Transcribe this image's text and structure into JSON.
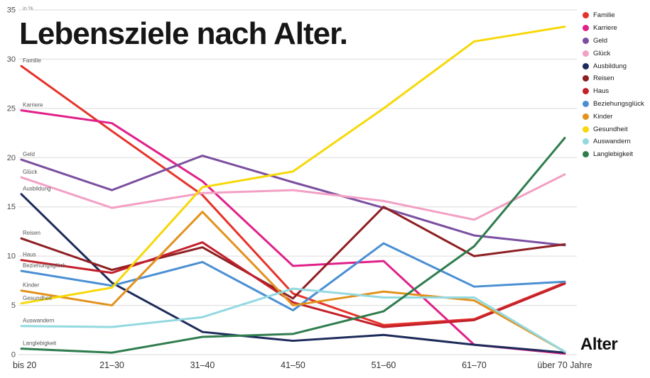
{
  "title": "Lebensziele nach Alter.",
  "chart_data": {
    "type": "line",
    "title": "Lebensziele nach Alter.",
    "xlabel": "Alter",
    "ylabel": "in %",
    "ylim": [
      0,
      35
    ],
    "y_ticks": [
      0,
      5,
      10,
      15,
      20,
      25,
      30,
      35
    ],
    "grid": true,
    "legend_position": "top-right",
    "categories": [
      "bis 20",
      "21–30",
      "31–40",
      "41–50",
      "51–60",
      "61–70",
      "über 70 Jahre"
    ],
    "series": [
      {
        "name": "Familie",
        "color": "#e5332a",
        "values": [
          29.3,
          22.7,
          16.2,
          6.2,
          3.0,
          3.6,
          7.3
        ]
      },
      {
        "name": "Karriere",
        "color": "#e0218a",
        "values": [
          24.8,
          23.5,
          17.6,
          9.0,
          9.5,
          1.0,
          0.1
        ]
      },
      {
        "name": "Geld",
        "color": "#7a4fa0",
        "values": [
          19.8,
          16.7,
          20.2,
          17.5,
          14.9,
          12.1,
          11.1
        ]
      },
      {
        "name": "Glück",
        "color": "#f2a0c4",
        "values": [
          18.0,
          14.9,
          16.4,
          16.7,
          15.6,
          13.7,
          18.3
        ]
      },
      {
        "name": "Ausbildung",
        "color": "#1d2b5a",
        "values": [
          16.3,
          7.3,
          2.3,
          1.4,
          2.0,
          1.0,
          0.2
        ]
      },
      {
        "name": "Reisen",
        "color": "#8e1f22",
        "values": [
          11.8,
          8.6,
          10.9,
          5.7,
          15.0,
          10.0,
          11.2
        ]
      },
      {
        "name": "Haus",
        "color": "#c2202b",
        "values": [
          9.6,
          8.3,
          11.4,
          5.3,
          2.8,
          3.5,
          7.2
        ]
      },
      {
        "name": "Beziehungsglück",
        "color": "#4a8fd3",
        "values": [
          8.5,
          7.0,
          9.4,
          4.5,
          11.3,
          6.9,
          7.4
        ]
      },
      {
        "name": "Kinder",
        "color": "#e2921d",
        "values": [
          6.5,
          5.0,
          14.5,
          5.0,
          6.4,
          5.5,
          0.3
        ]
      },
      {
        "name": "Gesundheit",
        "color": "#f7d808",
        "values": [
          5.2,
          6.8,
          17.0,
          18.6,
          25.0,
          31.8,
          33.3
        ]
      },
      {
        "name": "Auswandern",
        "color": "#93d9e0",
        "values": [
          2.9,
          2.8,
          3.8,
          6.7,
          5.8,
          5.8,
          0.3
        ]
      },
      {
        "name": "Langlebigkeit",
        "color": "#2f7d4e",
        "values": [
          0.6,
          0.2,
          1.8,
          2.1,
          4.4,
          11.0,
          22.0
        ]
      }
    ]
  }
}
